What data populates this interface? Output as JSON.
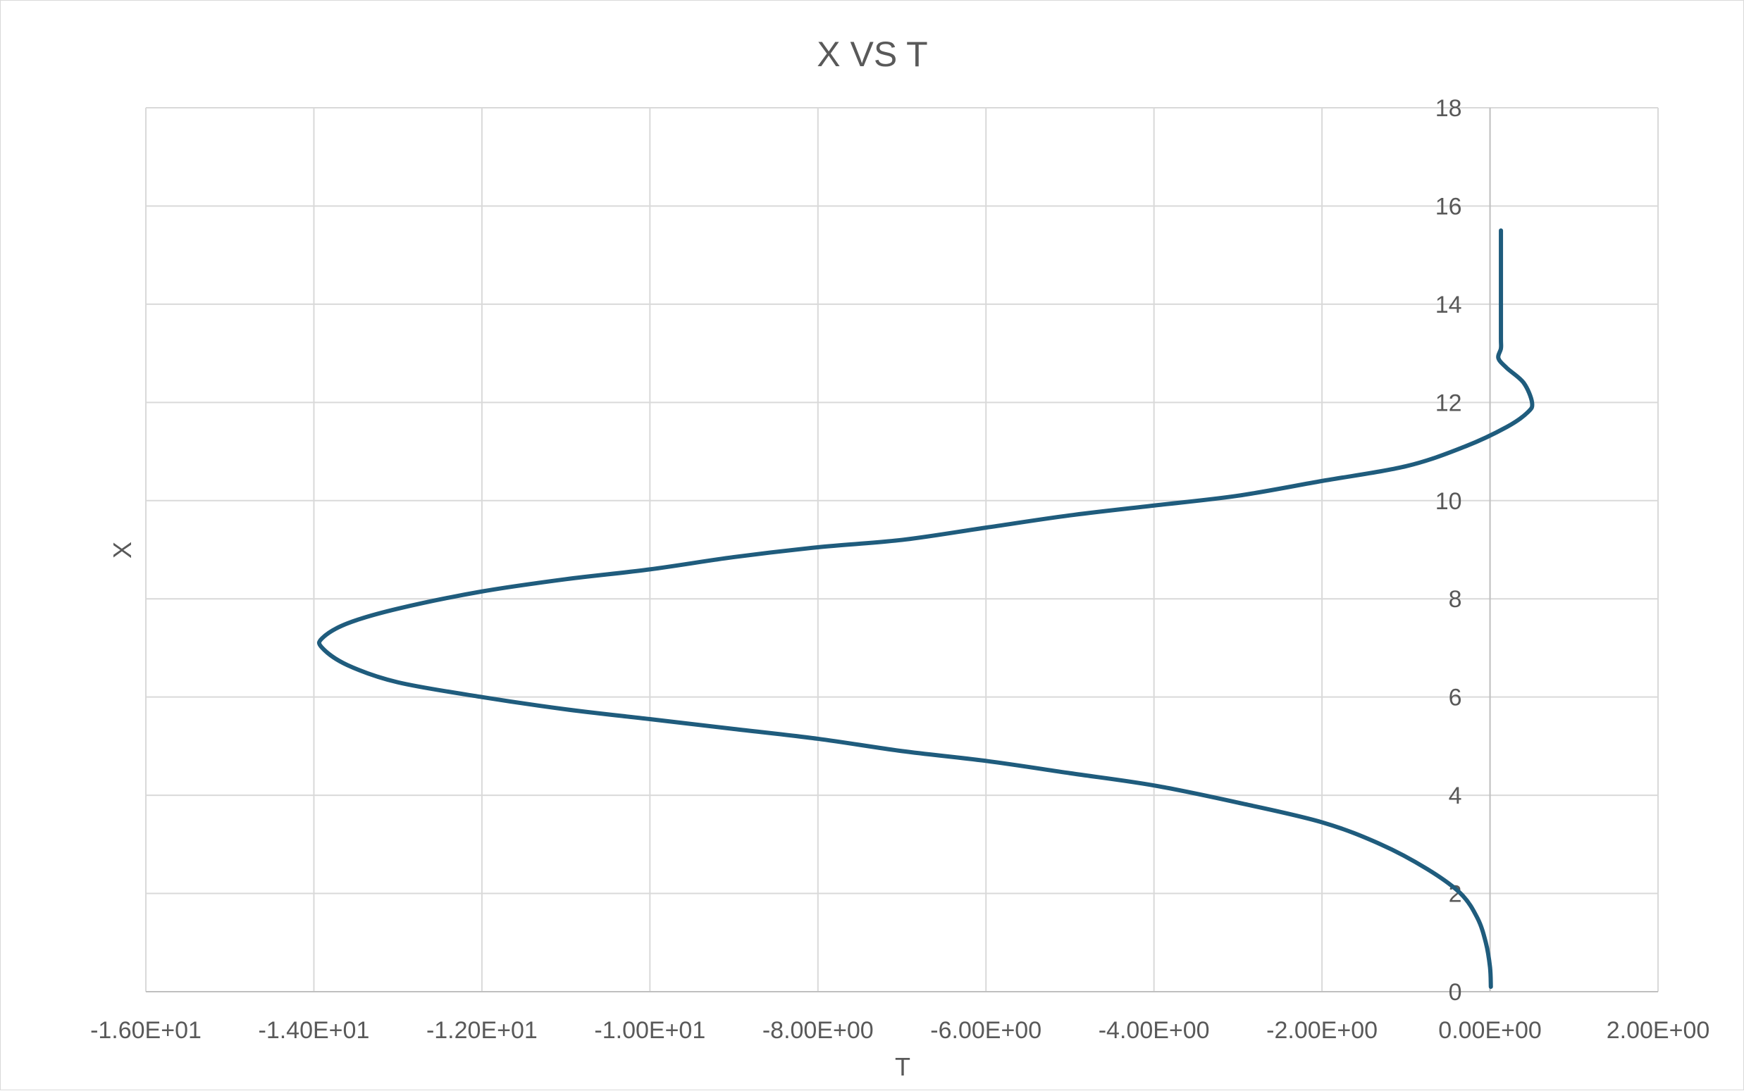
{
  "chart_data": {
    "type": "scatter",
    "title": "X VS T",
    "xlabel": "T",
    "ylabel": "X",
    "xlim": [
      -16,
      2
    ],
    "ylim": [
      0,
      18
    ],
    "x_ticks": [
      -16,
      -14,
      -12,
      -10,
      -8,
      -6,
      -4,
      -2,
      0,
      2
    ],
    "x_tick_labels": [
      "-1.60E+01",
      "-1.40E+01",
      "-1.20E+01",
      "-1.00E+01",
      "-8.00E+00",
      "-6.00E+00",
      "-4.00E+00",
      "-2.00E+00",
      "0.00E+00",
      "2.00E+00"
    ],
    "y_ticks": [
      0,
      2,
      4,
      6,
      8,
      10,
      12,
      14,
      16,
      18
    ],
    "y_tick_labels": [
      "0",
      "2",
      "4",
      "6",
      "8",
      "10",
      "12",
      "14",
      "16",
      "18"
    ],
    "grid": true,
    "line_color": "#1f5c7d",
    "series": [
      {
        "points": [
          [
            0.01,
            0.1
          ],
          [
            0.0,
            0.5
          ],
          [
            -0.05,
            1.0
          ],
          [
            -0.15,
            1.5
          ],
          [
            -0.35,
            2.0
          ],
          [
            -0.75,
            2.5
          ],
          [
            -1.3,
            3.0
          ],
          [
            -2.0,
            3.45
          ],
          [
            -3.0,
            3.85
          ],
          [
            -4.0,
            4.2
          ],
          [
            -5.0,
            4.45
          ],
          [
            -6.0,
            4.7
          ],
          [
            -7.0,
            4.9
          ],
          [
            -8.0,
            5.15
          ],
          [
            -9.0,
            5.35
          ],
          [
            -10.0,
            5.55
          ],
          [
            -11.0,
            5.75
          ],
          [
            -12.0,
            6.0
          ],
          [
            -13.0,
            6.3
          ],
          [
            -13.6,
            6.65
          ],
          [
            -13.9,
            7.0
          ],
          [
            -13.9,
            7.2
          ],
          [
            -13.6,
            7.5
          ],
          [
            -13.0,
            7.8
          ],
          [
            -12.0,
            8.15
          ],
          [
            -11.0,
            8.4
          ],
          [
            -10.0,
            8.6
          ],
          [
            -9.0,
            8.85
          ],
          [
            -8.0,
            9.05
          ],
          [
            -7.0,
            9.2
          ],
          [
            -6.0,
            9.45
          ],
          [
            -5.0,
            9.7
          ],
          [
            -4.0,
            9.9
          ],
          [
            -3.0,
            10.1
          ],
          [
            -2.0,
            10.4
          ],
          [
            -1.0,
            10.7
          ],
          [
            -0.3,
            11.1
          ],
          [
            0.2,
            11.5
          ],
          [
            0.45,
            11.8
          ],
          [
            0.5,
            12.0
          ],
          [
            0.4,
            12.4
          ],
          [
            0.2,
            12.7
          ],
          [
            0.1,
            12.9
          ],
          [
            0.13,
            13.1
          ],
          [
            0.13,
            13.3
          ],
          [
            0.13,
            14.0
          ],
          [
            0.13,
            15.0
          ],
          [
            0.13,
            15.5
          ]
        ]
      }
    ]
  }
}
